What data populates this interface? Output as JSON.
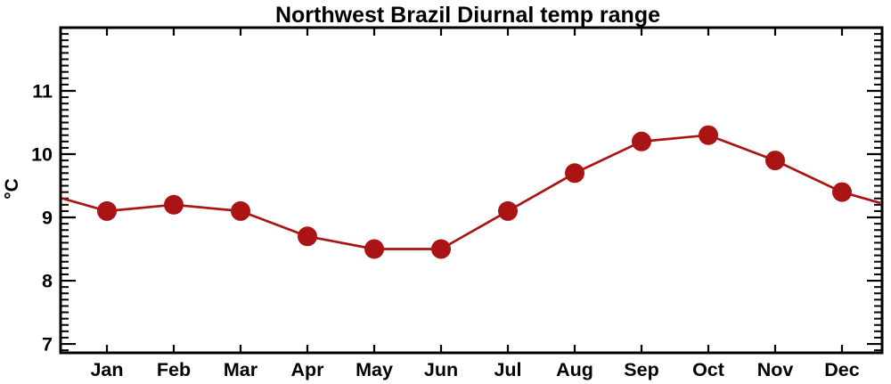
{
  "figure": {
    "background": "#ffffff"
  },
  "chart_data": {
    "type": "line",
    "title": "Northwest Brazil Diurnal temp range",
    "xlabel": "",
    "ylabel": "°C",
    "categories": [
      "Jan",
      "Feb",
      "Mar",
      "Apr",
      "May",
      "Jun",
      "Jul",
      "Aug",
      "Sep",
      "Oct",
      "Nov",
      "Dec"
    ],
    "values": [
      9.1,
      9.2,
      9.1,
      8.7,
      8.5,
      8.5,
      9.1,
      9.7,
      10.2,
      10.3,
      9.9,
      9.4
    ],
    "unit": "°C",
    "ylim": [
      6.86,
      12.0
    ],
    "ytick_major": [
      7,
      8,
      9,
      10,
      11
    ],
    "ytick_labels": [
      "7",
      "8",
      "9",
      "10",
      "11"
    ],
    "ytick_minor_step": 0.1,
    "xtick_per_category": true,
    "grid": false,
    "legend": "none",
    "marker": "filled-circle",
    "line_wraps_cyclically": true,
    "colors": {
      "series": "#aa1414",
      "axis": "#000000",
      "text": "#000000",
      "background": "#ffffff"
    }
  }
}
